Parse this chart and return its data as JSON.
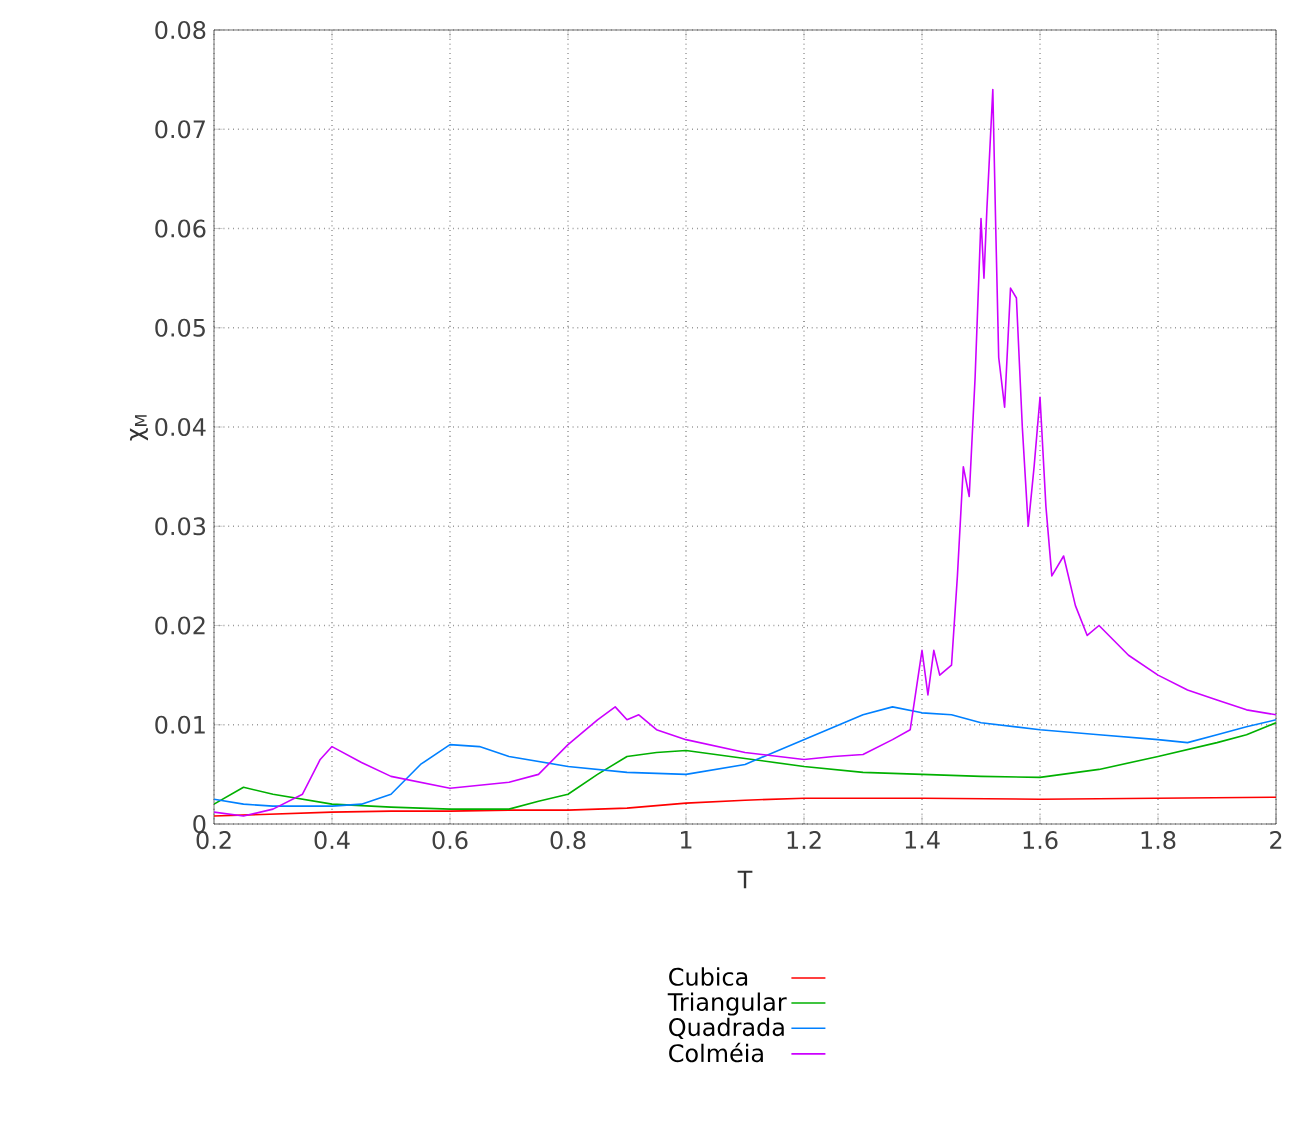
{
  "chart_data": {
    "type": "line",
    "xlabel": "T",
    "ylabel": "χ$_{M}$",
    "xlim": [
      0.2,
      2
    ],
    "ylim": [
      0,
      0.08
    ],
    "xticks": [
      0.2,
      0.4,
      0.6,
      0.8,
      1,
      1.2,
      1.4,
      1.6,
      1.8,
      2
    ],
    "yticks": [
      0,
      0.01,
      0.02,
      0.03,
      0.04,
      0.05,
      0.06,
      0.07,
      0.08
    ],
    "grid": true,
    "legend": "bottom",
    "marker": "none",
    "line_style": "solid",
    "series": [
      {
        "name": "Cubica",
        "color": "#ff0000",
        "x": [
          0.2,
          0.3,
          0.4,
          0.5,
          0.6,
          0.7,
          0.8,
          0.9,
          1.0,
          1.1,
          1.2,
          1.4,
          1.6,
          1.8,
          2.0
        ],
        "values": [
          0.0008,
          0.001,
          0.0012,
          0.0013,
          0.0013,
          0.0014,
          0.0014,
          0.0016,
          0.0021,
          0.0024,
          0.0026,
          0.0026,
          0.0025,
          0.0026,
          0.0027
        ]
      },
      {
        "name": "Triangular",
        "color": "#00b000",
        "x": [
          0.2,
          0.25,
          0.3,
          0.35,
          0.4,
          0.5,
          0.6,
          0.7,
          0.75,
          0.8,
          0.85,
          0.9,
          0.95,
          1.0,
          1.1,
          1.2,
          1.3,
          1.4,
          1.5,
          1.6,
          1.7,
          1.8,
          1.85,
          1.9,
          1.95,
          2.0
        ],
        "values": [
          0.002,
          0.0037,
          0.003,
          0.0025,
          0.002,
          0.0017,
          0.0015,
          0.0015,
          0.0023,
          0.003,
          0.005,
          0.0068,
          0.0072,
          0.0074,
          0.0066,
          0.0058,
          0.0052,
          0.005,
          0.0048,
          0.0047,
          0.0055,
          0.0068,
          0.0075,
          0.0082,
          0.009,
          0.0102
        ]
      },
      {
        "name": "Quadrada",
        "color": "#0080ff",
        "x": [
          0.2,
          0.25,
          0.3,
          0.4,
          0.45,
          0.5,
          0.55,
          0.6,
          0.65,
          0.7,
          0.8,
          0.9,
          1.0,
          1.1,
          1.2,
          1.3,
          1.35,
          1.4,
          1.45,
          1.5,
          1.6,
          1.7,
          1.8,
          1.85,
          1.9,
          1.95,
          2.0
        ],
        "values": [
          0.0025,
          0.002,
          0.0018,
          0.0018,
          0.002,
          0.003,
          0.006,
          0.008,
          0.0078,
          0.0068,
          0.0058,
          0.0052,
          0.005,
          0.006,
          0.0085,
          0.011,
          0.0118,
          0.0112,
          0.011,
          0.0102,
          0.0095,
          0.009,
          0.0085,
          0.0082,
          0.009,
          0.0098,
          0.0105
        ]
      },
      {
        "name": "Colméia",
        "color": "#cc00ff",
        "x": [
          0.2,
          0.25,
          0.3,
          0.35,
          0.38,
          0.4,
          0.45,
          0.5,
          0.6,
          0.7,
          0.75,
          0.8,
          0.85,
          0.88,
          0.9,
          0.92,
          0.95,
          1.0,
          1.1,
          1.2,
          1.25,
          1.3,
          1.35,
          1.38,
          1.4,
          1.41,
          1.42,
          1.43,
          1.45,
          1.46,
          1.47,
          1.48,
          1.49,
          1.5,
          1.505,
          1.51,
          1.52,
          1.525,
          1.53,
          1.54,
          1.55,
          1.56,
          1.57,
          1.58,
          1.59,
          1.6,
          1.61,
          1.62,
          1.64,
          1.66,
          1.68,
          1.7,
          1.75,
          1.8,
          1.85,
          1.9,
          1.95,
          2.0
        ],
        "values": [
          0.0012,
          0.0008,
          0.0015,
          0.003,
          0.0065,
          0.0078,
          0.0062,
          0.0048,
          0.0036,
          0.0042,
          0.005,
          0.008,
          0.0105,
          0.0118,
          0.0105,
          0.011,
          0.0095,
          0.0085,
          0.0072,
          0.0065,
          0.0068,
          0.007,
          0.0085,
          0.0095,
          0.0175,
          0.013,
          0.0175,
          0.015,
          0.016,
          0.025,
          0.036,
          0.033,
          0.045,
          0.061,
          0.055,
          0.062,
          0.074,
          0.06,
          0.047,
          0.042,
          0.054,
          0.053,
          0.04,
          0.03,
          0.036,
          0.043,
          0.032,
          0.025,
          0.027,
          0.022,
          0.019,
          0.02,
          0.017,
          0.015,
          0.0135,
          0.0125,
          0.0115,
          0.011
        ]
      }
    ]
  }
}
